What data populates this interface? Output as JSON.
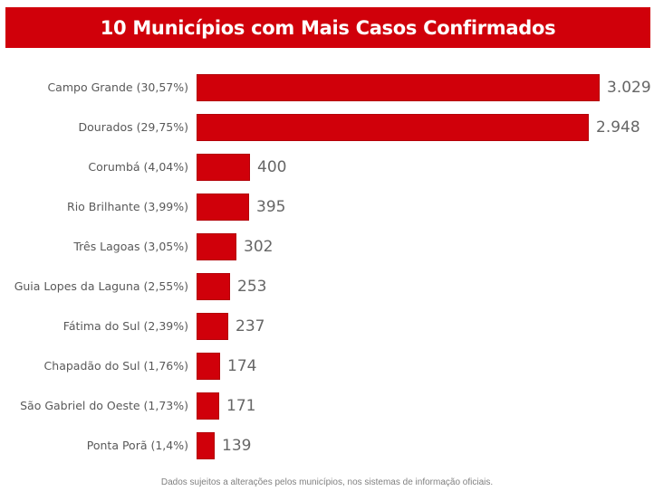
{
  "title": "10 Municípios com Mais Casos Confirmados",
  "footnote": "Dados sujeitos a alterações pelos municípios, nos sistemas de informação oficiais.",
  "colors": {
    "bar": "#d0000a",
    "title_bg": "#d0000a",
    "label": "#595959",
    "value": "#666666"
  },
  "rows": [
    {
      "label": "Campo Grande (30,57%)",
      "value_label": "3.029",
      "value": 3029
    },
    {
      "label": "Dourados (29,75%)",
      "value_label": "2.948",
      "value": 2948
    },
    {
      "label": "Corumbá (4,04%)",
      "value_label": "400",
      "value": 400
    },
    {
      "label": "Rio Brilhante (3,99%)",
      "value_label": "395",
      "value": 395
    },
    {
      "label": "Três Lagoas (3,05%)",
      "value_label": "302",
      "value": 302
    },
    {
      "label": "Guia Lopes da Laguna (2,55%)",
      "value_label": "253",
      "value": 253
    },
    {
      "label": "Fátima do Sul (2,39%)",
      "value_label": "237",
      "value": 237
    },
    {
      "label": "Chapadão do Sul (1,76%)",
      "value_label": "174",
      "value": 174
    },
    {
      "label": "São Gabriel do Oeste (1,73%)",
      "value_label": "171",
      "value": 171
    },
    {
      "label": "Ponta Porã (1,4%)",
      "value_label": "139",
      "value": 139
    }
  ],
  "chart_data": {
    "type": "bar",
    "orientation": "horizontal",
    "title": "10 Municípios com Mais Casos Confirmados",
    "categories": [
      "Campo Grande (30,57%)",
      "Dourados (29,75%)",
      "Corumbá (4,04%)",
      "Rio Brilhante (3,99%)",
      "Três Lagoas (3,05%)",
      "Guia Lopes da Laguna (2,55%)",
      "Fátima do Sul (2,39%)",
      "Chapadão do Sul (1,76%)",
      "São Gabriel do Oeste (1,73%)",
      "Ponta Porã (1,4%)"
    ],
    "values": [
      3029,
      2948,
      400,
      395,
      302,
      253,
      237,
      174,
      171,
      139
    ],
    "percentages": [
      30.57,
      29.75,
      4.04,
      3.99,
      3.05,
      2.55,
      2.39,
      1.76,
      1.73,
      1.4
    ],
    "xlabel": "",
    "ylabel": "",
    "grid": false,
    "legend": "none",
    "data_labels": true,
    "footnote": "Dados sujeitos a alterações pelos municípios, nos sistemas de informação oficiais."
  }
}
